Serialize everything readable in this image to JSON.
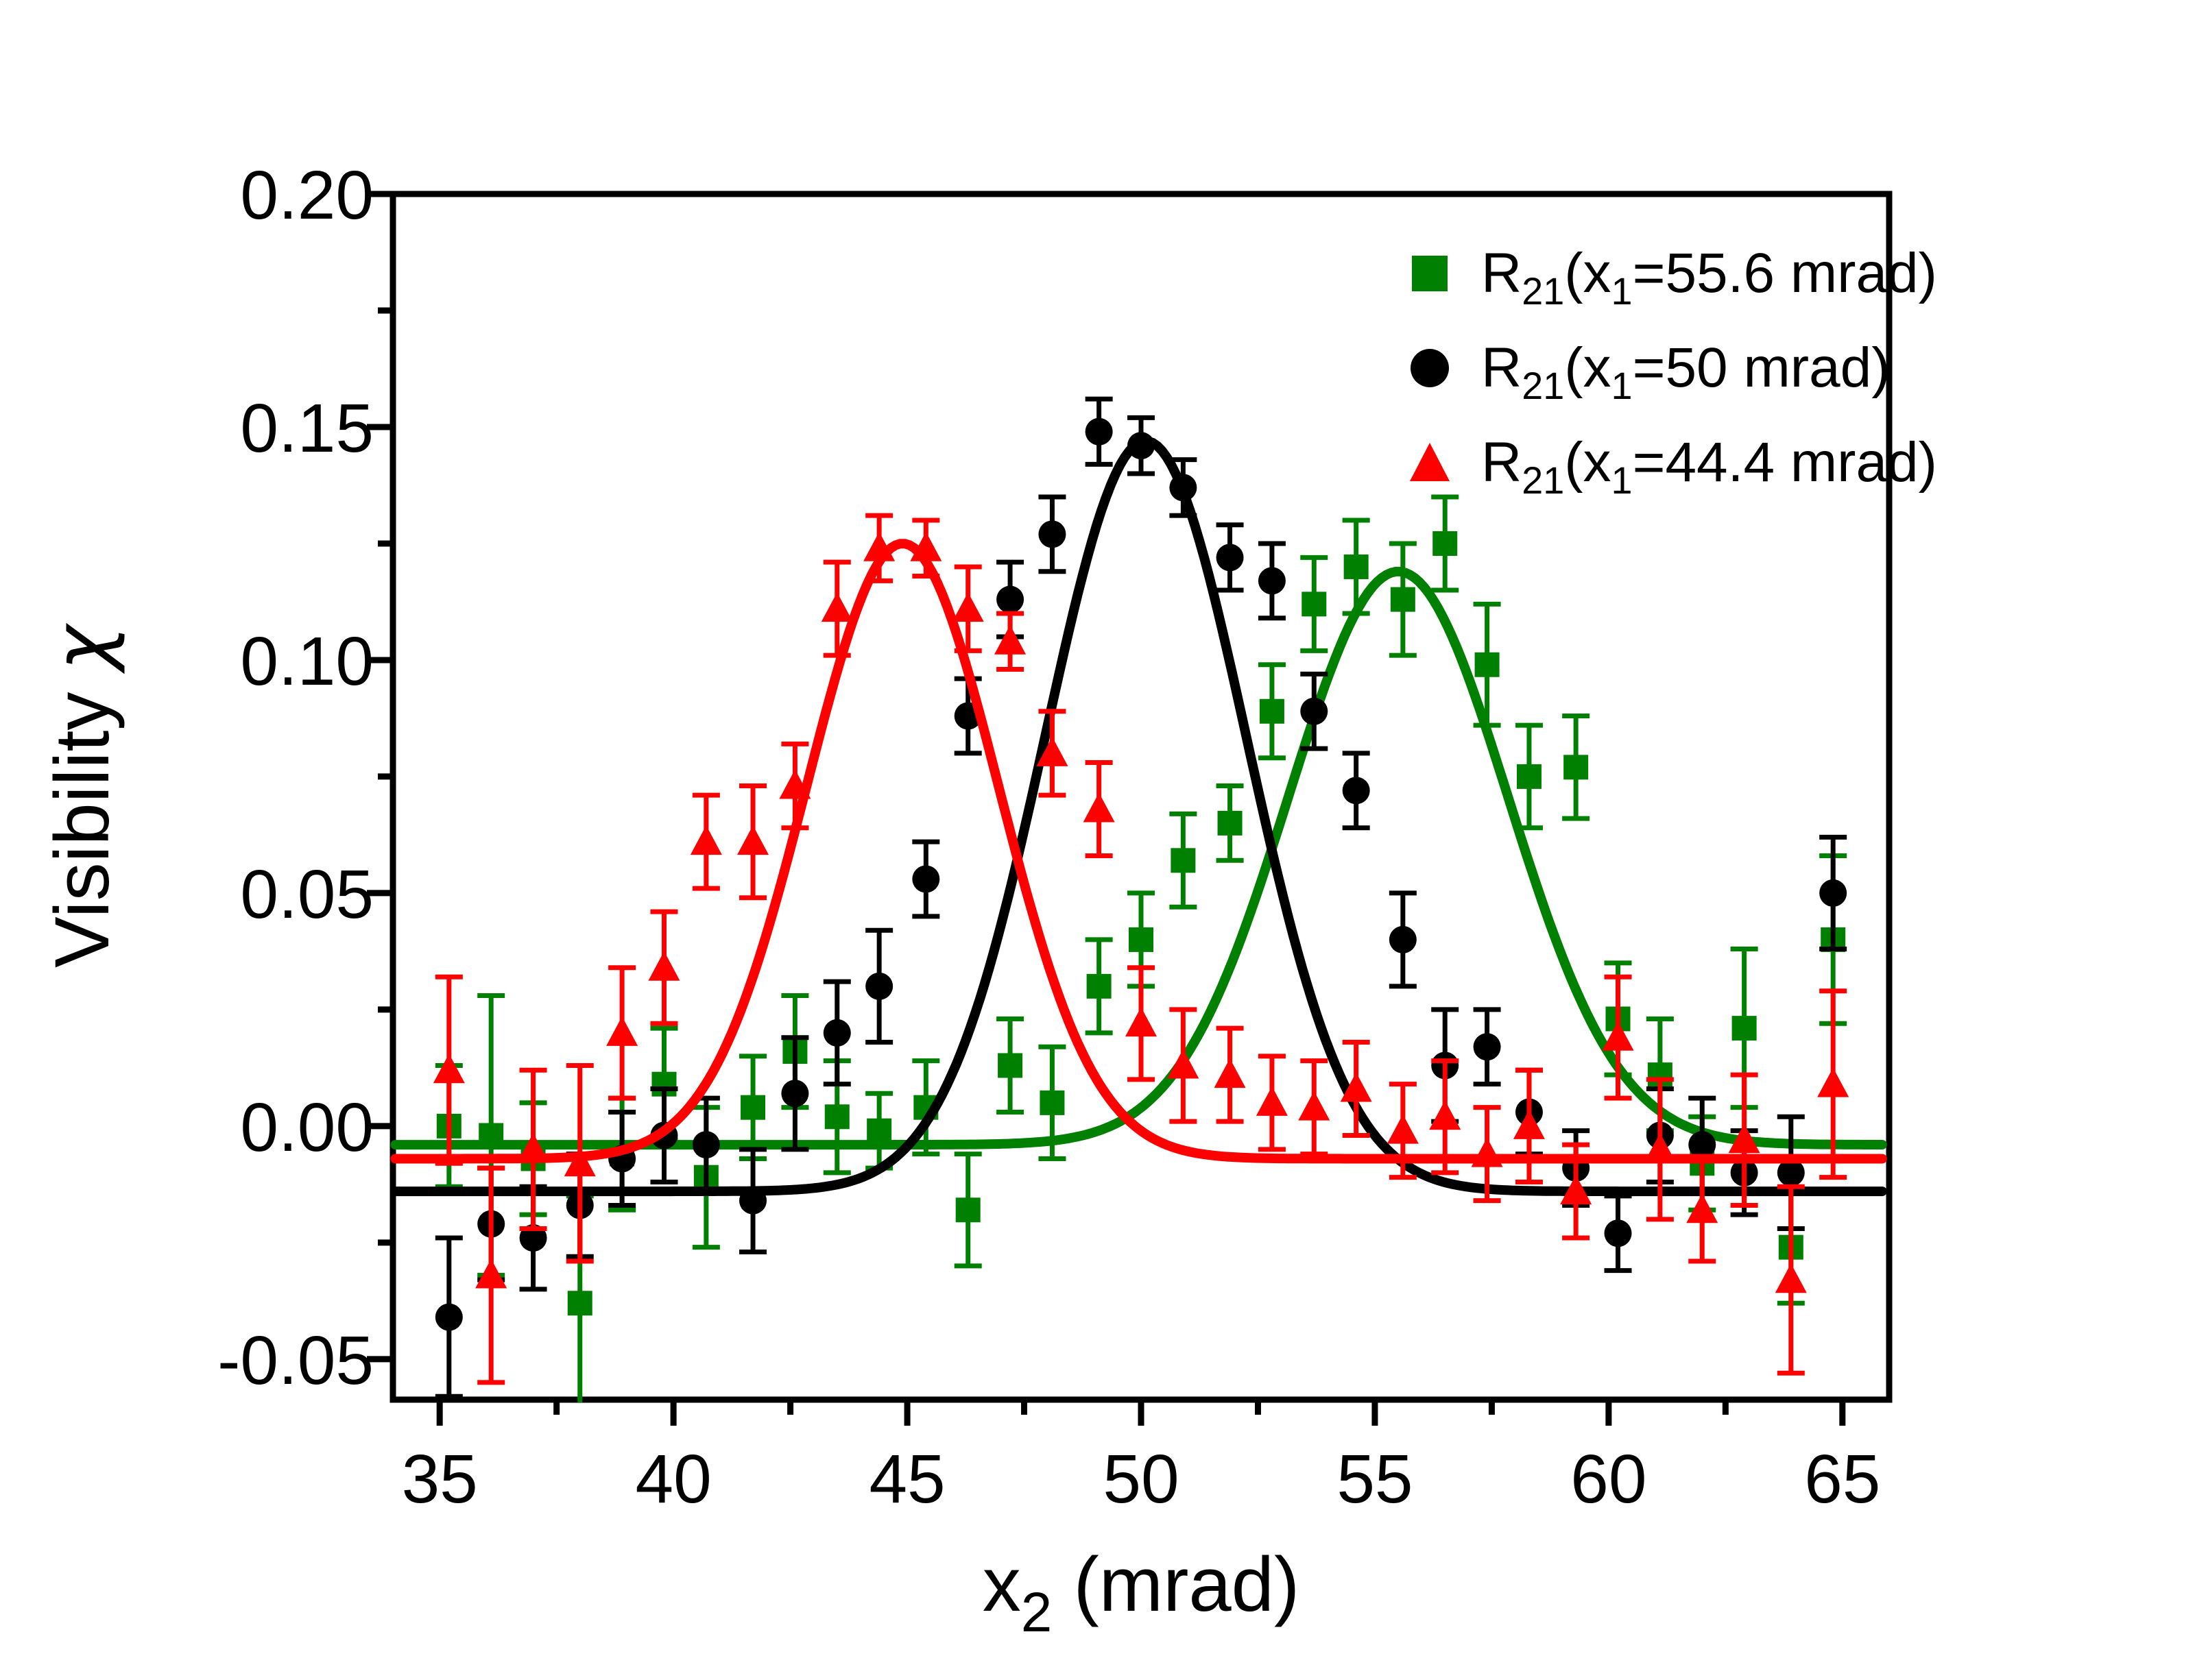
{
  "chart_data": {
    "type": "scatter",
    "xlabel_main": "x",
    "xlabel_sub": "2",
    "xlabel_unit": " (mrad)",
    "ylabel_main": "Visibility ",
    "ylabel_symbol": "χ",
    "x_range": [
      34.0,
      66.0
    ],
    "y_range": [
      -0.0587,
      0.2
    ],
    "x_ticks_major": [
      35,
      40,
      45,
      50,
      55,
      60,
      65
    ],
    "x_tick_labels": [
      "35",
      "40",
      "45",
      "50",
      "55",
      "60",
      "65"
    ],
    "x_ticks_minor": [
      37.5,
      42.5,
      47.5,
      52.5,
      57.5,
      62.5
    ],
    "y_ticks_major": [
      0.2,
      0.15,
      0.1,
      0.05,
      0.0,
      -0.05
    ],
    "y_tick_labels": [
      "0.20",
      "0.15",
      "0.10",
      "0.05",
      "0.00",
      "-0.05"
    ],
    "y_ticks_minor": [
      0.175,
      0.125,
      0.075,
      0.025,
      -0.025
    ],
    "grid": false,
    "legend_position": "top-right-inside",
    "series": [
      {
        "name": "R21(x1=55.6 mrad)",
        "legend": {
          "base": "R",
          "base_sub": "21",
          "open": "(x",
          "x_sub": "1",
          "rest": "=55.6 mrad)"
        },
        "color": "#008000",
        "marker": "square",
        "fit": {
          "type": "gaussian",
          "base": -0.004,
          "amp": 0.123,
          "center": 55.5,
          "sigma": 2.35
        },
        "points": [
          [
            35.2,
            0.0,
            0.013
          ],
          [
            36.1,
            -0.002,
            0.03
          ],
          [
            37.0,
            -0.007,
            0.012
          ],
          [
            38.0,
            -0.038,
            0.023
          ],
          [
            38.9,
            -0.006,
            0.012
          ],
          [
            39.8,
            0.009,
            0.012
          ],
          [
            40.7,
            -0.011,
            0.015
          ],
          [
            41.7,
            0.004,
            0.011
          ],
          [
            42.6,
            0.016,
            0.012
          ],
          [
            43.5,
            0.002,
            0.012
          ],
          [
            44.4,
            -0.001,
            0.008
          ],
          [
            45.4,
            0.004,
            0.01
          ],
          [
            46.3,
            -0.018,
            0.012
          ],
          [
            47.2,
            0.013,
            0.01
          ],
          [
            48.1,
            0.005,
            0.012
          ],
          [
            49.1,
            0.03,
            0.01
          ],
          [
            50.0,
            0.04,
            0.01
          ],
          [
            50.9,
            0.057,
            0.01
          ],
          [
            51.9,
            0.065,
            0.008
          ],
          [
            52.8,
            0.089,
            0.01
          ],
          [
            53.7,
            0.112,
            0.01
          ],
          [
            54.6,
            0.12,
            0.01
          ],
          [
            55.6,
            0.113,
            0.012
          ],
          [
            56.5,
            0.125,
            0.01
          ],
          [
            57.4,
            0.099,
            0.013
          ],
          [
            58.3,
            0.075,
            0.011
          ],
          [
            59.3,
            0.077,
            0.011
          ],
          [
            60.2,
            0.023,
            0.012
          ],
          [
            61.1,
            0.011,
            0.012
          ],
          [
            62.0,
            -0.008,
            0.01
          ],
          [
            62.9,
            0.021,
            0.017
          ],
          [
            63.9,
            -0.026,
            0.012
          ],
          [
            64.8,
            0.04,
            0.018
          ]
        ]
      },
      {
        "name": "R21(x1=50 mrad)",
        "legend": {
          "base": "R",
          "base_sub": "21",
          "open": "(x",
          "x_sub": "1",
          "rest": "=50 mrad)"
        },
        "color": "#000000",
        "marker": "circle",
        "fit": {
          "type": "gaussian",
          "base": -0.014,
          "amp": 0.161,
          "center": 50.1,
          "sigma": 2.15
        },
        "points": [
          [
            35.2,
            -0.041,
            0.017
          ],
          [
            36.1,
            -0.021,
            0.012
          ],
          [
            37.0,
            -0.024,
            0.011
          ],
          [
            38.0,
            -0.017,
            0.011
          ],
          [
            38.9,
            -0.007,
            0.01
          ],
          [
            39.8,
            -0.002,
            0.01
          ],
          [
            40.7,
            -0.004,
            0.01
          ],
          [
            41.7,
            -0.016,
            0.011
          ],
          [
            42.6,
            0.007,
            0.012
          ],
          [
            43.5,
            0.02,
            0.011
          ],
          [
            44.4,
            0.03,
            0.012
          ],
          [
            45.4,
            0.053,
            0.008
          ],
          [
            46.3,
            0.088,
            0.008
          ],
          [
            47.2,
            0.113,
            0.008
          ],
          [
            48.1,
            0.127,
            0.008
          ],
          [
            49.1,
            0.149,
            0.007
          ],
          [
            50.0,
            0.146,
            0.006
          ],
          [
            50.9,
            0.137,
            0.006
          ],
          [
            51.9,
            0.122,
            0.007
          ],
          [
            52.8,
            0.117,
            0.008
          ],
          [
            53.7,
            0.089,
            0.008
          ],
          [
            54.6,
            0.072,
            0.008
          ],
          [
            55.6,
            0.04,
            0.01
          ],
          [
            56.5,
            0.013,
            0.012
          ],
          [
            57.4,
            0.017,
            0.008
          ],
          [
            58.3,
            0.003,
            0.009
          ],
          [
            59.3,
            -0.009,
            0.008
          ],
          [
            60.2,
            -0.023,
            0.008
          ],
          [
            61.1,
            -0.002,
            0.01
          ],
          [
            62.0,
            -0.004,
            0.01
          ],
          [
            62.9,
            -0.01,
            0.009
          ],
          [
            63.9,
            -0.01,
            0.012
          ],
          [
            64.8,
            0.05,
            0.012
          ]
        ]
      },
      {
        "name": "R21(x1=44.4 mrad)",
        "legend": {
          "base": "R",
          "base_sub": "21",
          "open": "(x",
          "x_sub": "1",
          "rest": "=44.4 mrad)"
        },
        "color": "#ff0000",
        "marker": "triangle",
        "fit": {
          "type": "gaussian",
          "base": -0.007,
          "amp": 0.132,
          "center": 44.9,
          "sigma": 2.05
        },
        "points": [
          [
            35.2,
            0.012,
            0.02
          ],
          [
            36.1,
            -0.032,
            0.023
          ],
          [
            37.0,
            -0.005,
            0.017
          ],
          [
            38.0,
            -0.008,
            0.021
          ],
          [
            38.9,
            0.02,
            0.014
          ],
          [
            39.8,
            0.034,
            0.012
          ],
          [
            40.7,
            0.061,
            0.01
          ],
          [
            41.7,
            0.061,
            0.012
          ],
          [
            42.6,
            0.073,
            0.009
          ],
          [
            43.5,
            0.111,
            0.01
          ],
          [
            44.4,
            0.124,
            0.007
          ],
          [
            45.4,
            0.124,
            0.006
          ],
          [
            46.3,
            0.111,
            0.009
          ],
          [
            47.2,
            0.104,
            0.006
          ],
          [
            48.1,
            0.08,
            0.009
          ],
          [
            49.1,
            0.068,
            0.01
          ],
          [
            50.0,
            0.022,
            0.012
          ],
          [
            50.9,
            0.013,
            0.012
          ],
          [
            51.9,
            0.011,
            0.01
          ],
          [
            52.8,
            0.005,
            0.01
          ],
          [
            53.7,
            0.004,
            0.01
          ],
          [
            54.6,
            0.008,
            0.01
          ],
          [
            55.6,
            -0.001,
            0.01
          ],
          [
            56.5,
            0.002,
            0.012
          ],
          [
            57.4,
            -0.006,
            0.01
          ],
          [
            58.3,
            0.0,
            0.012
          ],
          [
            59.3,
            -0.014,
            0.01
          ],
          [
            60.2,
            0.019,
            0.013
          ],
          [
            61.1,
            -0.005,
            0.015
          ],
          [
            62.0,
            -0.018,
            0.011
          ],
          [
            62.9,
            -0.003,
            0.014
          ],
          [
            63.9,
            -0.033,
            0.02
          ],
          [
            64.8,
            0.009,
            0.02
          ]
        ]
      }
    ]
  }
}
